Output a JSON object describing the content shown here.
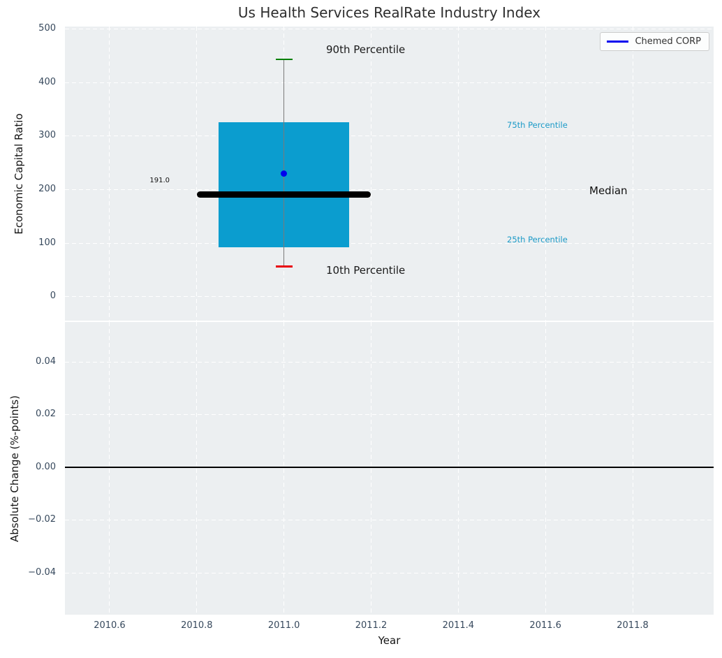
{
  "title": "Us Health Services RealRate Industry Index",
  "xlabel": "Year",
  "legend": {
    "label": "Chemed CORP"
  },
  "annotations": {
    "p90_label": "90th Percentile",
    "p10_label": "10th Percentile",
    "p75_label": "75th Percentile",
    "p25_label": "25th Percentile",
    "median_label": "Median",
    "median_value_label": "191.0"
  },
  "colors": {
    "plot_background": "#eceff1",
    "gridline": "#ffffff",
    "tick_label": "#36485c",
    "box_fill": "#0b9dcf",
    "whisker": "#7a7a7a",
    "cap_90th": "#008000",
    "cap_10th": "#e8000b",
    "median_line": "#000000",
    "company_point": "#0000ee",
    "percentile_label": "#1b9ac7",
    "zero_line": "#000000"
  },
  "chart_data": {
    "type": "box",
    "title": "Us Health Services RealRate Industry Index",
    "xlabel": "Year",
    "xlim": [
      2010.4975,
      2011.9858
    ],
    "xticks": [
      2010.6,
      2010.8,
      2011.0,
      2011.2,
      2011.4,
      2011.6,
      2011.8
    ],
    "xtick_labels": [
      "2010.6",
      "2010.8",
      "2011.0",
      "2011.2",
      "2011.4",
      "2011.6",
      "2011.8"
    ],
    "grid": "white dashed on light gray",
    "legend_position": "upper right",
    "top": {
      "ylabel": "Economic Capital Ratio",
      "ylim": [
        -45,
        504
      ],
      "yticks": [
        500,
        400,
        300,
        200,
        100,
        0
      ],
      "ytick_labels": [
        "500",
        "400",
        "300",
        "200",
        "100",
        "0"
      ],
      "box": {
        "x_center": 2011.0,
        "x_left": 2010.85,
        "x_right": 2011.15,
        "median_x_left": 2010.8,
        "median_x_right": 2011.2,
        "p10": 56,
        "p25": 92,
        "median": 191.0,
        "p75": 325,
        "p90": 443
      },
      "company_point": {
        "name": "Chemed CORP",
        "x": 2011.0,
        "y": 229
      }
    },
    "bottom": {
      "ylabel": "Absolute Change (%-points)",
      "ylim": [
        -0.0559,
        0.0551
      ],
      "yticks": [
        0.04,
        0.02,
        0.0,
        -0.02,
        -0.04
      ],
      "ytick_labels": [
        "0.04",
        "0.02",
        "0.00",
        "−0.02",
        "−0.04"
      ],
      "zero_line": 0.0,
      "series": []
    }
  }
}
